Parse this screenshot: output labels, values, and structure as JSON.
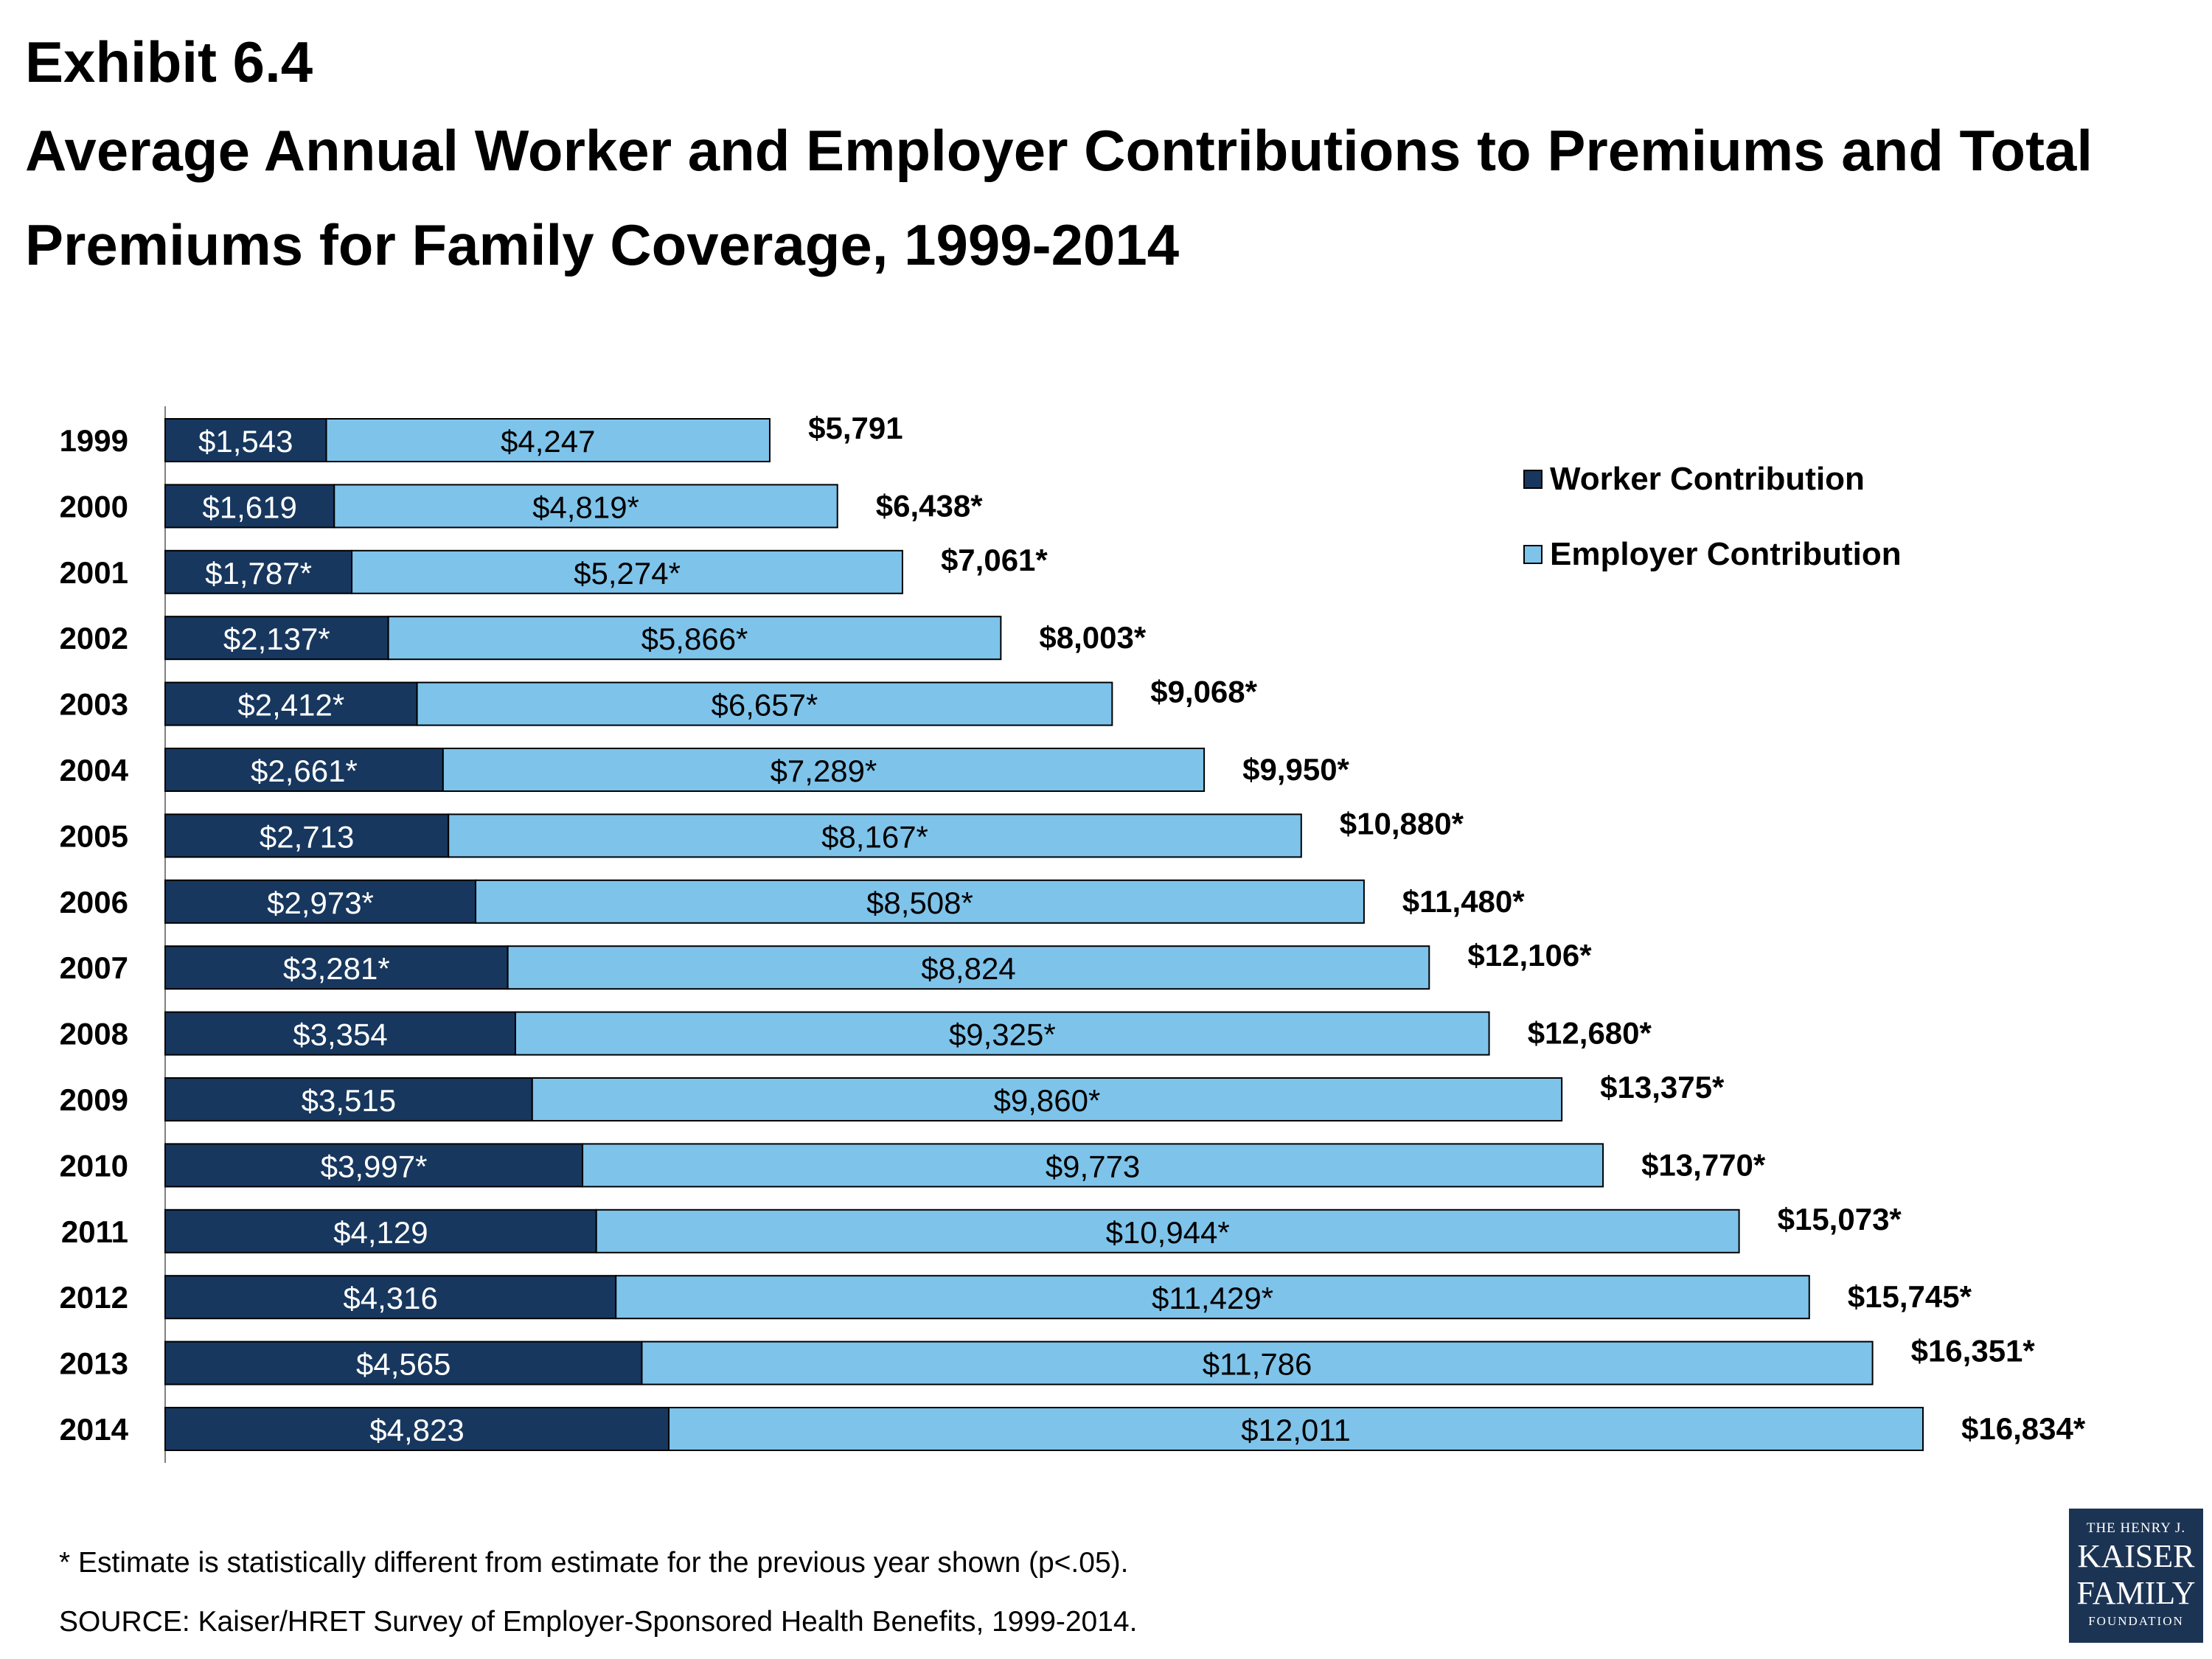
{
  "header": {
    "exhibit": "Exhibit 6.4",
    "title": "Average Annual Worker and Employer Contributions to Premiums and Total Premiums for Family Coverage, 1999-2014"
  },
  "colors": {
    "worker": "#17375e",
    "employer": "#7ec3ea",
    "outline": "#000000"
  },
  "chart_data": {
    "type": "bar",
    "orientation": "horizontal",
    "stacked": true,
    "categories": [
      "1999",
      "2000",
      "2001",
      "2002",
      "2003",
      "2004",
      "2005",
      "2006",
      "2007",
      "2008",
      "2009",
      "2010",
      "2011",
      "2012",
      "2013",
      "2014"
    ],
    "series": [
      {
        "name": "Worker Contribution",
        "values": [
          1543,
          1619,
          1787,
          2137,
          2412,
          2661,
          2713,
          2973,
          3281,
          3354,
          3515,
          3997,
          4129,
          4316,
          4565,
          4823
        ],
        "labels": [
          "$1,543",
          "$1,619",
          "$1,787*",
          "$2,137*",
          "$2,412*",
          "$2,661*",
          "$2,713",
          "$2,973*",
          "$3,281*",
          "$3,354",
          "$3,515",
          "$3,997*",
          "$4,129",
          "$4,316",
          "$4,565",
          "$4,823"
        ]
      },
      {
        "name": "Employer Contribution",
        "values": [
          4247,
          4819,
          5274,
          5866,
          6657,
          7289,
          8167,
          8508,
          8824,
          9325,
          9860,
          9773,
          10944,
          11429,
          11786,
          12011
        ],
        "labels": [
          "$4,247",
          "$4,819*",
          "$5,274*",
          "$5,866*",
          "$6,657*",
          "$7,289*",
          "$8,167*",
          "$8,508*",
          "$8,824",
          "$9,325*",
          "$9,860*",
          "$9,773",
          "$10,944*",
          "$11,429*",
          "$11,786",
          "$12,011"
        ]
      }
    ],
    "totals": [
      5791,
      6438,
      7061,
      8003,
      9068,
      9950,
      10880,
      11480,
      12106,
      12680,
      13375,
      13770,
      15073,
      15745,
      16351,
      16834
    ],
    "total_labels": [
      "$5,791",
      "$6,438*",
      "$7,061*",
      "$8,003*",
      "$9,068*",
      "$9,950*",
      "$10,880*",
      "$11,480*",
      "$12,106*",
      "$12,680*",
      "$13,375*",
      "$13,770*",
      "$15,073*",
      "$15,745*",
      "$16,351*",
      "$16,834*"
    ],
    "xlim": [
      0,
      16834
    ],
    "grid": false,
    "legend_position": "top-right"
  },
  "legend": {
    "worker": "Worker Contribution",
    "employer": "Employer Contribution"
  },
  "footnote": "* Estimate is statistically different from estimate for the previous year shown (p<.05).",
  "source": "SOURCE:  Kaiser/HRET Survey of Employer-Sponsored Health Benefits, 1999-2014.",
  "logo": {
    "line1": "THE HENRY J.",
    "line2": "KAISER",
    "line3": "FAMILY",
    "line4": "FOUNDATION"
  }
}
